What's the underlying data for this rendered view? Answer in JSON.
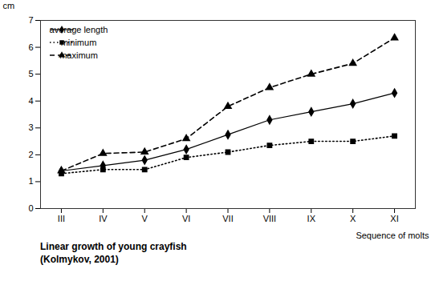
{
  "chart_data": {
    "type": "line",
    "title": "Linear growth of young crayfish",
    "subtitle": "(Kolmykov, 2001)",
    "xlabel": "Sequence of molts",
    "ylabel": "cm",
    "x": [
      3,
      4,
      5,
      6,
      7,
      8,
      9,
      10,
      11
    ],
    "series": [
      {
        "name": "average length",
        "color": "#000000",
        "marker": "diamond",
        "line_style": "solid",
        "values": [
          1.4,
          1.6,
          1.8,
          2.2,
          2.75,
          3.3,
          3.6,
          3.9,
          4.3
        ]
      },
      {
        "name": "minimum",
        "color": "#000000",
        "marker": "square",
        "line_style": "dotted",
        "values": [
          1.3,
          1.45,
          1.45,
          1.9,
          2.1,
          2.35,
          2.5,
          2.5,
          2.7
        ]
      },
      {
        "name": "maximum",
        "color": "#000000",
        "marker": "triangle",
        "line_style": "dashed",
        "values": [
          1.4,
          2.05,
          2.1,
          2.6,
          3.8,
          4.5,
          5.0,
          5.4,
          6.35
        ]
      }
    ],
    "xlim": [
      2.5,
      11.5
    ],
    "xticks": [
      {
        "value": 3,
        "label": "III"
      },
      {
        "value": 4,
        "label": "IV"
      },
      {
        "value": 5,
        "label": "V"
      },
      {
        "value": 6,
        "label": "VI"
      },
      {
        "value": 7,
        "label": "VII"
      },
      {
        "value": 8,
        "label": "VIII"
      },
      {
        "value": 9,
        "label": "IX"
      },
      {
        "value": 10,
        "label": "X"
      },
      {
        "value": 11,
        "label": "XI"
      }
    ],
    "ylim": [
      0,
      7
    ],
    "yticks": [
      0,
      1,
      2,
      3,
      4,
      5,
      6,
      7
    ],
    "legend": "upper left"
  }
}
